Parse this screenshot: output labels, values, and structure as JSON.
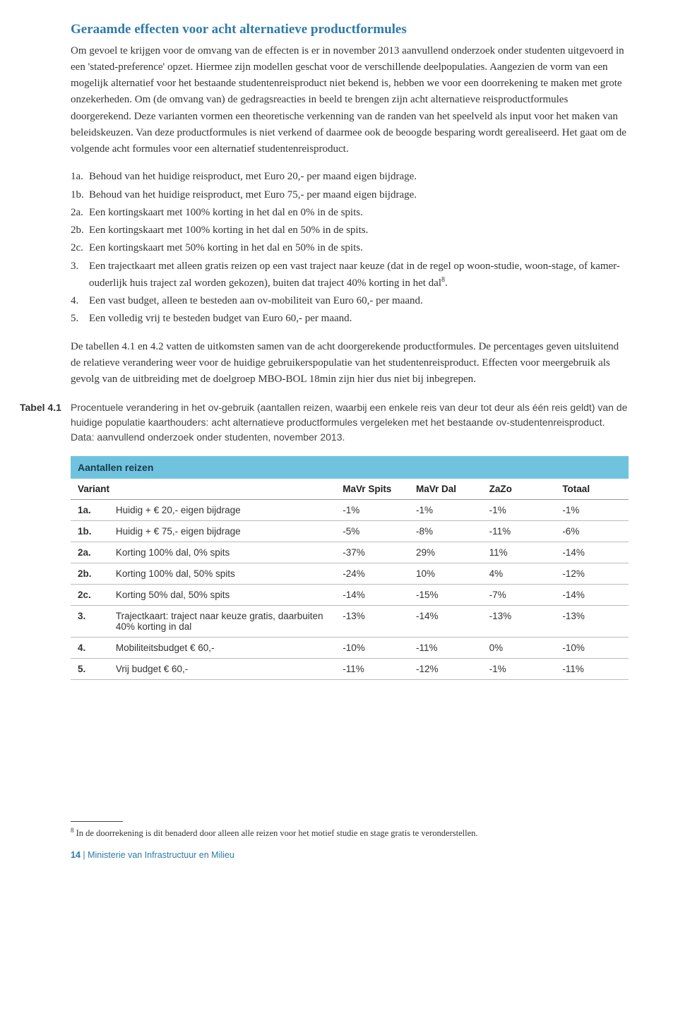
{
  "heading": "Geraamde effecten voor acht alternatieve productformules",
  "para1": "Om gevoel te krijgen voor de omvang van de effecten is er in november 2013 aanvullend onderzoek onder studenten uitgevoerd in een 'stated-preference' opzet. Hiermee zijn modellen geschat voor de verschillende deelpopulaties. Aangezien de vorm van een mogelijk alternatief voor het bestaande studentenreisproduct niet bekend is, hebben we voor een doorrekening te maken met grote onzekerheden. Om (de omvang van) de gedragsreacties in beeld te brengen zijn acht alternatieve reisproductformules doorgerekend. Deze varianten vormen een theoretische verkenning van de randen van het speelveld als input voor het maken van beleidskeuzen. Van deze productformules is niet verkend of daarmee ook de beoogde besparing wordt gerealiseerd. Het gaat om de volgende acht formules voor een alternatief studentenreisproduct.",
  "list_items": [
    {
      "num": "1a.",
      "text": "Behoud van het huidige reisproduct, met Euro 20,- per maand eigen bijdrage."
    },
    {
      "num": "1b.",
      "text": "Behoud van het huidige reisproduct, met Euro 75,- per maand eigen bijdrage."
    },
    {
      "num": "2a.",
      "text": "Een kortingskaart met 100% korting in het dal en 0% in de spits."
    },
    {
      "num": "2b.",
      "text": "Een kortingskaart met 100% korting in het dal en 50% in de spits."
    },
    {
      "num": "2c.",
      "text": "Een kortingskaart met 50% korting in het dal en 50% in de spits."
    },
    {
      "num": "3.",
      "text": "Een trajectkaart met alleen gratis reizen op een vast traject naar keuze (dat in de regel op woon-studie, woon-stage, of kamer-ouderlijk huis traject zal worden gekozen), buiten dat traject 40% korting in het dal",
      "sup": "8",
      "suffix": "."
    },
    {
      "num": "4.",
      "text": "Een vast budget, alleen te besteden aan ov-mobiliteit van Euro 60,- per maand."
    },
    {
      "num": "5.",
      "text": "Een volledig vrij te besteden budget van Euro 60,- per maand."
    }
  ],
  "para2": "De tabellen 4.1 en 4.2 vatten de uitkomsten samen van de acht doorgerekende productformules. De percentages geven uitsluitend de relatieve verandering weer voor de huidige gebruikerspopulatie van het studentenreisproduct. Effecten voor meergebruik als gevolg van de uitbreiding met de doelgroep MBO-BOL 18min zijn hier dus niet bij inbegrepen.",
  "table": {
    "label": "Tabel 4.1",
    "caption": "Procentuele verandering in het ov-gebruik (aantallen reizen, waarbij een enkele reis van deur tot deur als één reis geldt) van de huidige populatie kaarthouders: acht alternatieve productformules vergeleken met het bestaande ov-studentenreisproduct. Data: aanvullend onderzoek onder studenten, november 2013.",
    "title": "Aantallen reizen",
    "columns": [
      "Variant",
      "MaVr Spits",
      "MaVr Dal",
      "ZaZo",
      "Totaal"
    ],
    "rows": [
      {
        "num": "1a.",
        "desc": "Huidig + € 20,- eigen bijdrage",
        "vals": [
          "-1%",
          "-1%",
          "-1%",
          "-1%"
        ]
      },
      {
        "num": "1b.",
        "desc": "Huidig + € 75,- eigen bijdrage",
        "vals": [
          "-5%",
          "-8%",
          "-11%",
          "-6%"
        ]
      },
      {
        "num": "2a.",
        "desc": "Korting 100% dal, 0% spits",
        "vals": [
          "-37%",
          "29%",
          "11%",
          "-14%"
        ]
      },
      {
        "num": "2b.",
        "desc": "Korting 100% dal, 50% spits",
        "vals": [
          "-24%",
          "10%",
          "4%",
          "-12%"
        ]
      },
      {
        "num": "2c.",
        "desc": "Korting 50% dal, 50% spits",
        "vals": [
          "-14%",
          "-15%",
          "-7%",
          "-14%"
        ]
      },
      {
        "num": "3.",
        "desc": "Trajectkaart: traject naar keuze gratis, daarbuiten 40% korting in dal",
        "vals": [
          "-13%",
          "-14%",
          "-13%",
          "-13%"
        ]
      },
      {
        "num": "4.",
        "desc": "Mobiliteitsbudget € 60,-",
        "vals": [
          "-10%",
          "-11%",
          "0%",
          "-10%"
        ]
      },
      {
        "num": "5.",
        "desc": "Vrij budget € 60,-",
        "vals": [
          "-11%",
          "-12%",
          "-1%",
          "-11%"
        ]
      }
    ],
    "header_bg": "#6fc3df",
    "header_text": "#1a3a4a",
    "border_color": "#bbbbbb"
  },
  "footnote": {
    "num": "8",
    "text": "In de doorrekening is dit benaderd door alleen alle reizen voor het motief studie en stage gratis te veronderstellen."
  },
  "footer": {
    "page": "14",
    "sep": " | ",
    "org": "Ministerie van Infrastructuur en Milieu"
  }
}
